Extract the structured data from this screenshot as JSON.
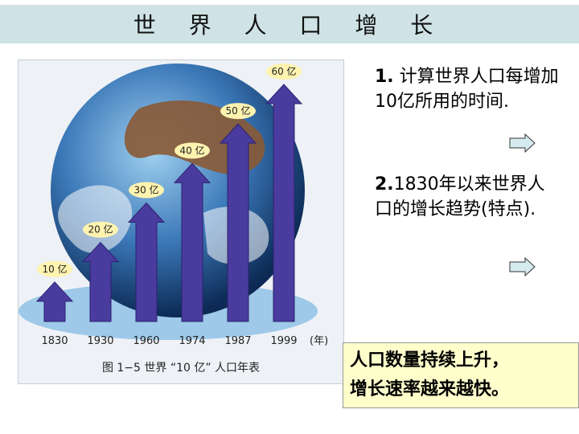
{
  "title": "世 界 人 口 增 长",
  "questions": [
    {
      "num": "1.",
      "text": " 计算世界人口每增加10亿所用的时间."
    },
    {
      "num": "2.",
      "text": "1830年以来世界人口的增长趋势(特点)."
    }
  ],
  "conclusion": [
    "人口数量持续上升，",
    "增长速率越来越快。"
  ],
  "figure_caption": "图 1−5   世界 “10 亿” 人口年表",
  "colors": {
    "arrow": "#4a3b9e",
    "title_bar": "#cfe3e6",
    "conclusion_bg": "#ffffcc",
    "label_bg": "#fff3b0"
  },
  "icons": [
    "right-arrow-icon",
    "globe-image"
  ],
  "chart_data": {
    "type": "bar",
    "categories": [
      "1830",
      "1930",
      "1960",
      "1974",
      "1987",
      "1999"
    ],
    "values": [
      10,
      20,
      30,
      40,
      50,
      60
    ],
    "value_labels": [
      "10 亿",
      "20 亿",
      "30 亿",
      "40 亿",
      "50 亿",
      "60 亿"
    ],
    "x_unit": "(年)",
    "ylim": [
      0,
      60
    ],
    "grid": false
  }
}
